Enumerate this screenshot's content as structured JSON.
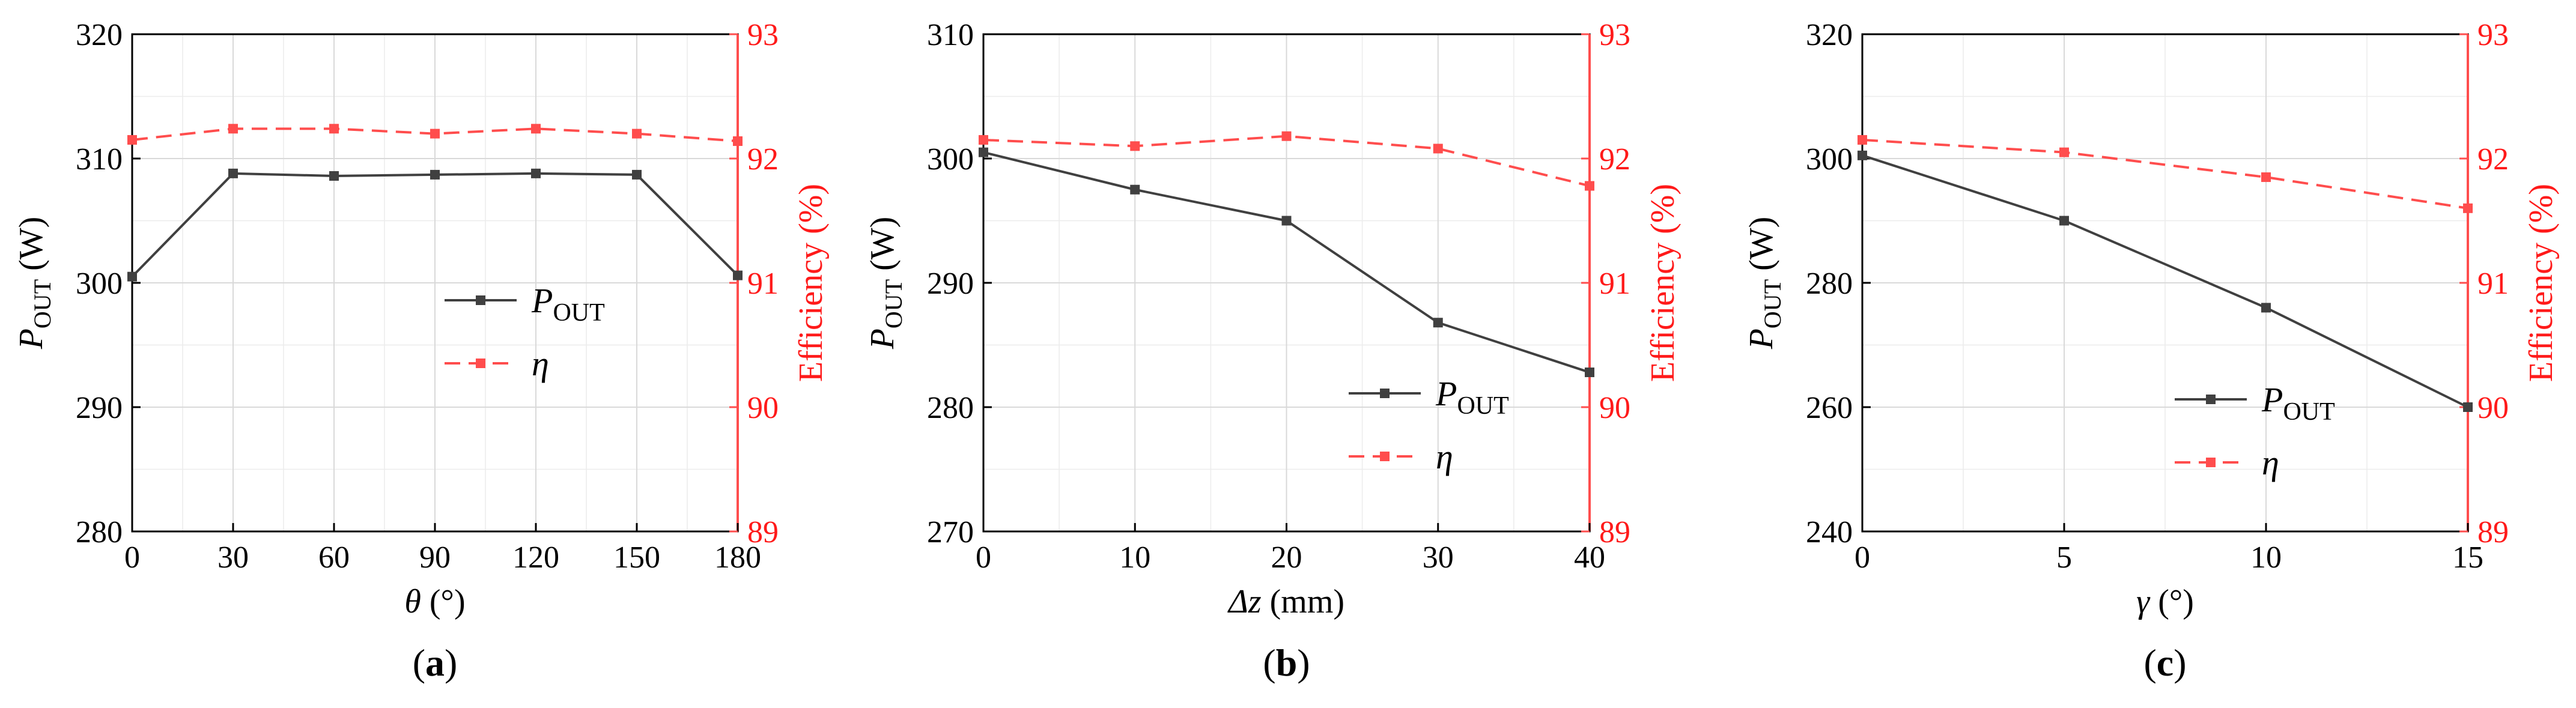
{
  "chart_data": [
    {
      "type": "line",
      "panel_label": "(a)",
      "x": [
        0,
        30,
        60,
        90,
        120,
        150,
        180
      ],
      "xticks": [
        "0",
        "30",
        "60",
        "90",
        "120",
        "150",
        "180"
      ],
      "xlim": [
        0,
        180
      ],
      "xlabel": {
        "var": "θ",
        "unit": " (°)"
      },
      "ylabel_left": {
        "var": "P",
        "sub": "OUT",
        "unit": " (W)"
      },
      "ylabel_right": "Efficiency (%)",
      "ylim_left": [
        280,
        320
      ],
      "yticks_left": [
        "280",
        "290",
        "300",
        "310",
        "320"
      ],
      "ylim_right": [
        89,
        93
      ],
      "yticks_right": [
        "89",
        "90",
        "91",
        "92",
        "93"
      ],
      "grid": true,
      "legend_position": "center-right",
      "series": [
        {
          "name": "P",
          "name_sub": "OUT",
          "axis": "left",
          "color": "#404040",
          "style": "solid",
          "values": [
            300.5,
            308.8,
            308.6,
            308.7,
            308.8,
            308.7,
            300.6
          ]
        },
        {
          "name": "η",
          "axis": "right",
          "color": "#ff4d4d",
          "style": "dashed",
          "values": [
            92.15,
            92.24,
            92.24,
            92.2,
            92.24,
            92.2,
            92.14
          ]
        }
      ]
    },
    {
      "type": "line",
      "panel_label": "(b)",
      "x": [
        0,
        10,
        20,
        30,
        40
      ],
      "xticks": [
        "0",
        "10",
        "20",
        "30",
        "40"
      ],
      "xlim": [
        0,
        40
      ],
      "xlabel": {
        "var": "Δz",
        "unit": " (mm)"
      },
      "ylabel_left": {
        "var": "P",
        "sub": "OUT",
        "unit": " (W)"
      },
      "ylabel_right": "Efficiency (%)",
      "ylim_left": [
        270,
        310
      ],
      "yticks_left": [
        "270",
        "280",
        "290",
        "300",
        "310"
      ],
      "ylim_right": [
        89,
        93
      ],
      "yticks_right": [
        "89",
        "90",
        "91",
        "92",
        "93"
      ],
      "grid": true,
      "legend_position": "lower-right",
      "series": [
        {
          "name": "P",
          "name_sub": "OUT",
          "axis": "left",
          "color": "#404040",
          "style": "solid",
          "values": [
            300.5,
            297.5,
            295.0,
            286.8,
            282.8
          ]
        },
        {
          "name": "η",
          "axis": "right",
          "color": "#ff4d4d",
          "style": "dashed",
          "values": [
            92.15,
            92.1,
            92.18,
            92.08,
            91.78
          ]
        }
      ]
    },
    {
      "type": "line",
      "panel_label": "(c)",
      "x": [
        0,
        5,
        10,
        15
      ],
      "xticks": [
        "0",
        "5",
        "10",
        "15"
      ],
      "xlim": [
        0,
        15
      ],
      "xlabel": {
        "var": "γ",
        "unit": " (°)"
      },
      "ylabel_left": {
        "var": "P",
        "sub": "OUT",
        "unit": " (W)"
      },
      "ylabel_right": "Efficiency (%)",
      "ylim_left": [
        240,
        320
      ],
      "yticks_left": [
        "240",
        "260",
        "280",
        "300",
        "320"
      ],
      "ylim_right": [
        89,
        93
      ],
      "yticks_right": [
        "89",
        "90",
        "91",
        "92",
        "93"
      ],
      "grid": true,
      "legend_position": "lower-right",
      "series": [
        {
          "name": "P",
          "name_sub": "OUT",
          "axis": "left",
          "color": "#404040",
          "style": "solid",
          "values": [
            300.5,
            290.0,
            276.0,
            260.0
          ]
        },
        {
          "name": "η",
          "axis": "right",
          "color": "#ff4d4d",
          "style": "dashed",
          "values": [
            92.15,
            92.05,
            91.85,
            91.6
          ]
        }
      ]
    }
  ]
}
